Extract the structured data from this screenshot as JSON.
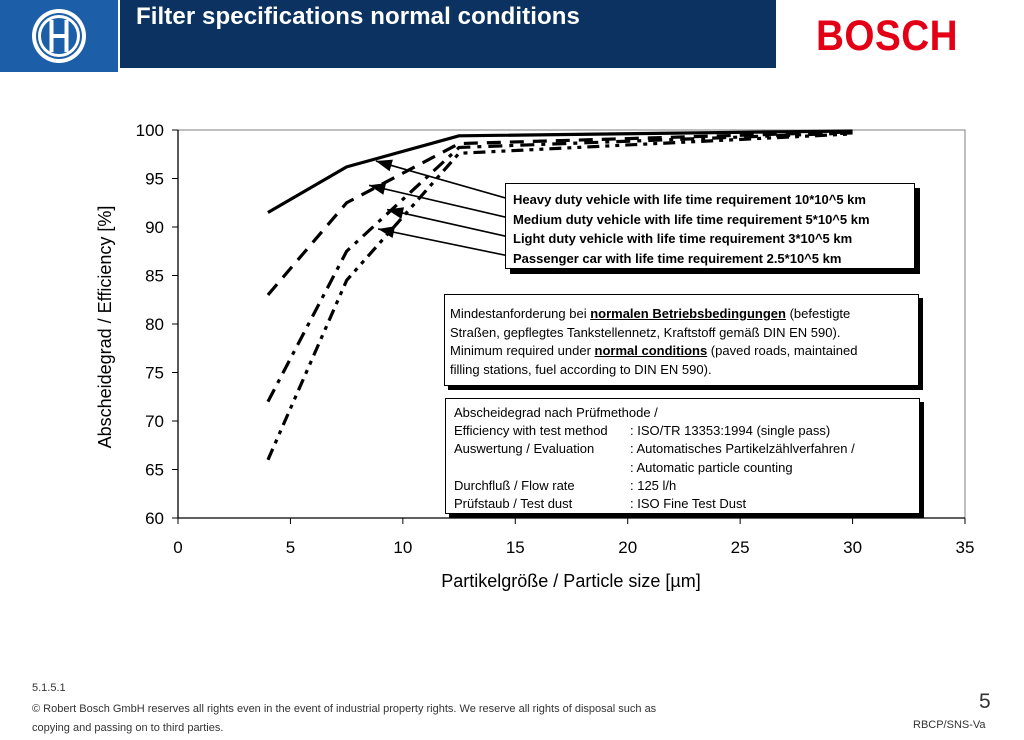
{
  "header": {
    "title": "Filter specifications normal conditions",
    "brand": "BOSCH",
    "logo_icon": "bosch-armature-icon",
    "colors": {
      "logo_bg": "#1c5ea8",
      "title_bg": "#0b3260",
      "brand": "#e30016"
    }
  },
  "chart_data": {
    "type": "line",
    "title": "",
    "xlabel": "Partikelgröße / Particle size [µm]",
    "ylabel": "Abscheidegrad / Efficiency [%]",
    "xlim": [
      0,
      35
    ],
    "ylim": [
      60,
      100
    ],
    "x_ticks": [
      0,
      5,
      10,
      15,
      20,
      25,
      30,
      35
    ],
    "y_ticks": [
      60,
      65,
      70,
      75,
      80,
      85,
      90,
      95,
      100
    ],
    "grid": false,
    "series": [
      {
        "name": "Heavy duty vehicle with life time requirement 10*10^5 km",
        "style": "solid",
        "x": [
          4,
          7.5,
          12.5,
          30
        ],
        "y": [
          91.5,
          96.2,
          99.4,
          99.9
        ]
      },
      {
        "name": "Medium duty vehicle with life time requirement 5*10^5 km",
        "style": "dashed",
        "x": [
          4,
          7.5,
          12.5,
          30
        ],
        "y": [
          83,
          92.5,
          98.6,
          99.8
        ]
      },
      {
        "name": "Light duty vehicle with life time requirement 3*10^5 km",
        "style": "dash-dot",
        "x": [
          4,
          7.5,
          12.5,
          30
        ],
        "y": [
          72,
          87.5,
          98.2,
          99.7
        ]
      },
      {
        "name": "Passenger car with life time requirement 2.5*10^5 km",
        "style": "dash-dot-dot",
        "x": [
          4,
          7.5,
          12.5,
          30
        ],
        "y": [
          66,
          84.5,
          97.6,
          99.6
        ]
      }
    ],
    "legend": {
      "placement": "right",
      "entries": [
        "Heavy duty vehicle with life time requirement 10*10^5 km",
        "Medium duty vehicle with life time requirement 5*10^5 km",
        "Light duty vehicle with life time requirement 3*10^5 km",
        "Passenger car with life time requirement 2.5*10^5 km"
      ]
    },
    "annotations": {
      "requirement_de_pre": "Mindestanforderung bei ",
      "requirement_de_ul": "normalen Betriebsbedingungen",
      "requirement_de_post": " (befestigte",
      "requirement_de_line2": "Straßen, gepflegtes Tankstellennetz, Kraftstoff gemäß DIN EN 590).",
      "requirement_en_pre": "Minimum required under ",
      "requirement_en_ul": "normal conditions",
      "requirement_en_post": " (paved roads, maintained",
      "requirement_en_line2": "filling stations, fuel according to DIN EN 590).",
      "spec_heading": "Abscheidegrad nach Prüfmethode /",
      "spec_rows": [
        {
          "key": "Efficiency with test method",
          "value": ": ISO/TR 13353:1994 (single pass)"
        },
        {
          "key": "Auswertung / Evaluation",
          "value": ": Automatisches Partikelzählverfahren /"
        },
        {
          "key": "",
          "value": ": Automatic particle counting"
        },
        {
          "key": "Durchfluß / Flow rate",
          "value": ": 125 l/h"
        },
        {
          "key": "Prüfstaub / Test dust",
          "value": ": ISO Fine Test Dust"
        }
      ]
    }
  },
  "footer": {
    "section_id": "5.1.5.1",
    "copyright_line1": "© Robert Bosch GmbH reserves all rights even in the event of industrial property rights. We reserve all rights of disposal such as",
    "copyright_line2": "copying and passing on to third parties.",
    "page_number": "5",
    "department": "RBCP/SNS-Va"
  }
}
